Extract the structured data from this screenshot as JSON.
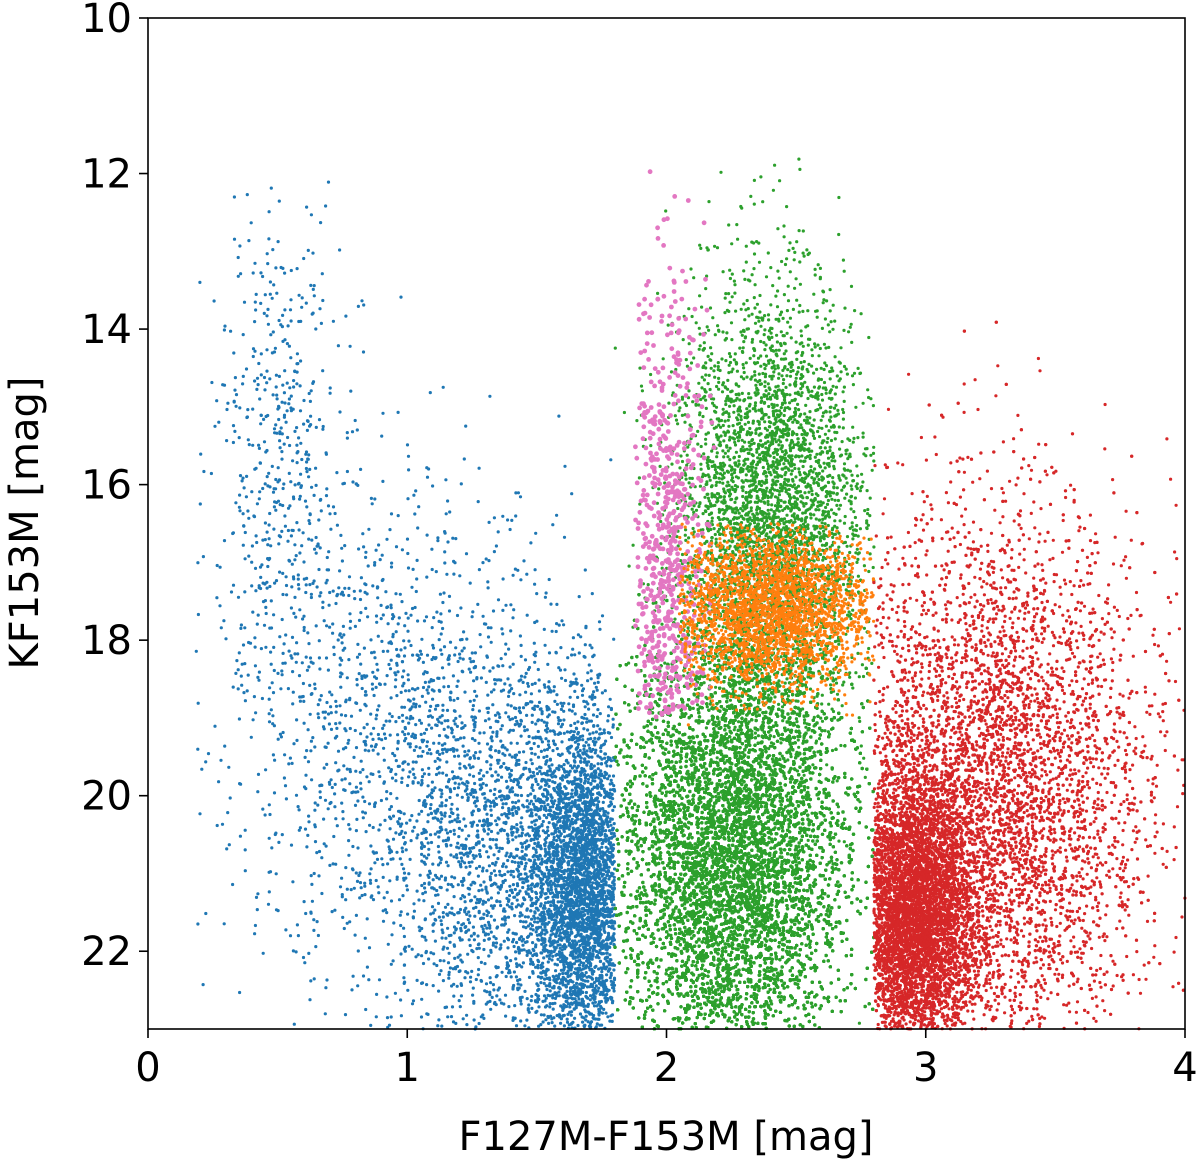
{
  "chart_data": {
    "type": "scatter",
    "title": "",
    "xlabel": "F127M-F153M [mag]",
    "ylabel": "KF153M [mag]",
    "xlim": [
      0,
      4
    ],
    "ylim": [
      23,
      10
    ],
    "y_inverted": true,
    "grid": false,
    "legend": "none",
    "xticks": [
      0,
      1,
      2,
      3,
      4
    ],
    "xtick_labels": [
      "0",
      "1",
      "2",
      "3",
      "4"
    ],
    "yticks": [
      10,
      12,
      14,
      16,
      18,
      20,
      22
    ],
    "ytick_labels": [
      "10",
      "12",
      "14",
      "16",
      "18",
      "20",
      "22"
    ],
    "series": [
      {
        "color": "#1f77b4",
        "region": {
          "x": [
            0.18,
            1.8
          ],
          "y": [
            11.8,
            23
          ]
        },
        "point_count": 6500,
        "clusters": [
          {
            "x_center": 0.5,
            "y_center": 15.5,
            "x_spread": 0.12,
            "y_spread": 1.6,
            "weight": 0.07
          },
          {
            "x_center": 0.95,
            "y_center": 19.0,
            "x_spread": 0.35,
            "y_spread": 1.6,
            "weight": 0.2
          },
          {
            "x_center": 1.68,
            "y_center": 21.2,
            "x_spread": 0.1,
            "y_spread": 1.1,
            "weight": 0.45
          },
          {
            "x_center": 1.4,
            "y_center": 20.8,
            "x_spread": 0.25,
            "y_spread": 1.3,
            "weight": 0.28
          }
        ]
      },
      {
        "color": "#2ca02c",
        "region": {
          "x": [
            1.8,
            2.8
          ],
          "y": [
            11.0,
            23
          ]
        },
        "point_count": 42000,
        "clusters": [
          {
            "x_center": 2.25,
            "y_center": 20.8,
            "x_spread": 0.22,
            "y_spread": 1.4,
            "weight": 0.9
          },
          {
            "x_center": 2.4,
            "y_center": 16.5,
            "x_spread": 0.18,
            "y_spread": 1.5,
            "weight": 0.1
          }
        ]
      },
      {
        "color": "#ff7f0e",
        "region": {
          "x": [
            2.05,
            2.8
          ],
          "y": [
            16.5,
            19.2
          ]
        },
        "point_count": 2600,
        "clusters": [
          {
            "x_center": 2.4,
            "y_center": 17.6,
            "x_spread": 0.2,
            "y_spread": 0.5,
            "weight": 1.0
          }
        ]
      },
      {
        "color": "#e377c2",
        "region": {
          "x": [
            1.88,
            2.2
          ],
          "y": [
            11.2,
            19.0
          ]
        },
        "point_count": 650,
        "clusters": [
          {
            "x_center": 2.0,
            "y_center": 17.0,
            "x_spread": 0.08,
            "y_spread": 1.8,
            "weight": 1.0
          }
        ]
      },
      {
        "color": "#d62728",
        "region": {
          "x": [
            2.8,
            4.0
          ],
          "y": [
            12.0,
            23
          ]
        },
        "point_count": 11000,
        "clusters": [
          {
            "x_center": 2.95,
            "y_center": 21.5,
            "x_spread": 0.12,
            "y_spread": 0.9,
            "weight": 0.45
          },
          {
            "x_center": 3.25,
            "y_center": 20.0,
            "x_spread": 0.3,
            "y_spread": 1.8,
            "weight": 0.55
          }
        ]
      }
    ]
  }
}
